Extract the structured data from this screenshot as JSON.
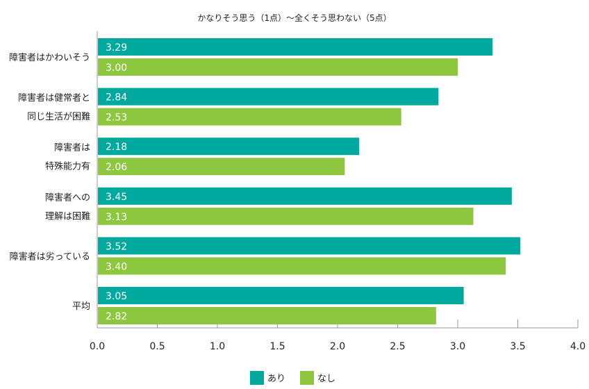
{
  "chart_data": {
    "type": "bar",
    "orientation": "horizontal",
    "title": "かなりそう思う（1点）〜全くそう思わない（5点）",
    "categories": [
      [
        "障害者はかわいそう"
      ],
      [
        "障害者は健常者と",
        "同じ生活が困難"
      ],
      [
        "障害者は",
        "特殊能力有"
      ],
      [
        "障害者への",
        "理解は困難"
      ],
      [
        "障害者は劣っている"
      ],
      [
        "平均"
      ]
    ],
    "series": [
      {
        "name": "あり",
        "color": "#00a99d",
        "values": [
          3.29,
          2.84,
          2.18,
          3.45,
          3.52,
          3.05
        ],
        "labels": [
          "3.29",
          "2.84",
          "2.18",
          "3.45",
          "3.52",
          "3.05"
        ]
      },
      {
        "name": "なし",
        "color": "#8dc63f",
        "values": [
          3.0,
          2.53,
          2.06,
          3.13,
          3.4,
          2.82
        ],
        "labels": [
          "3.00",
          "2.53",
          "2.06",
          "3.13",
          "3.40",
          "2.82"
        ]
      }
    ],
    "xlim": [
      0,
      4.0
    ],
    "xticks": [
      "0.0",
      "0.5",
      "1.0",
      "1.5",
      "2.0",
      "2.5",
      "3.0",
      "3.5",
      "4.0"
    ],
    "legend": "bottom-center",
    "grid": false
  }
}
